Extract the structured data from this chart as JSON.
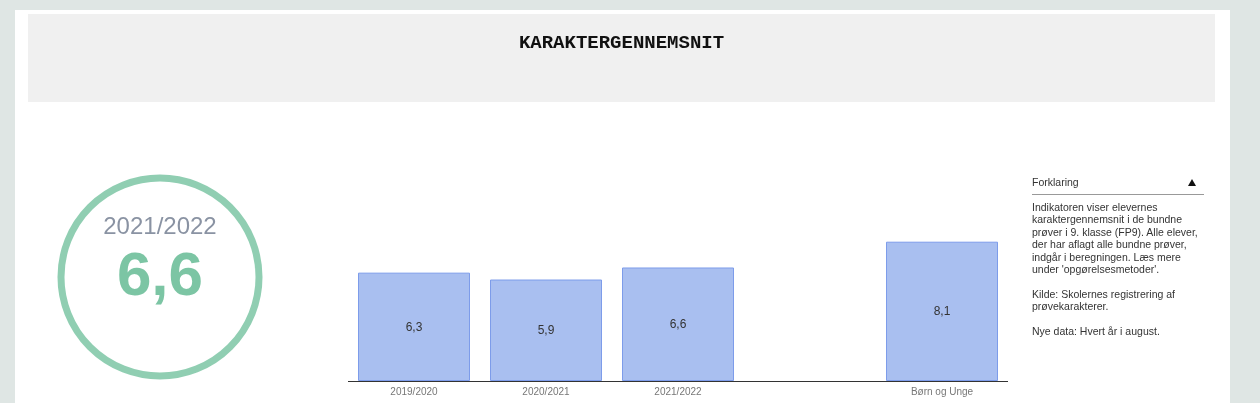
{
  "chart_data": [
    {
      "type": "other",
      "title": "KARAKTERGENNEMSNIT",
      "subtitle": "2021/2022",
      "annotations": [
        "6,6"
      ],
      "color": "#7cc5a4"
    },
    {
      "type": "bar",
      "categories": [
        "2019/2020",
        "2020/2021",
        "2021/2022",
        null,
        "Børn og Unge"
      ],
      "values": [
        6.3,
        5.9,
        6.6,
        null,
        8.1
      ],
      "value_labels": [
        "6,3",
        "5,9",
        "6,6",
        null,
        "8,1"
      ],
      "color": "#a9bff0"
    },
    {
      "type": "other",
      "title": "Forklaring",
      "annotations": [
        "Indikatoren viser elevernes karaktergennemsnit i de bundne prøver i 9. klasse (FP9). Alle elever, der har aflagt alle bundne prøver, indgår i beregningen. Læs mere under 'opgørelsesmetoder'.",
        "Kilde: Skolernes registrering af prøvekarakterer.",
        "Nye data: Hvert år i august."
      ]
    }
  ]
}
